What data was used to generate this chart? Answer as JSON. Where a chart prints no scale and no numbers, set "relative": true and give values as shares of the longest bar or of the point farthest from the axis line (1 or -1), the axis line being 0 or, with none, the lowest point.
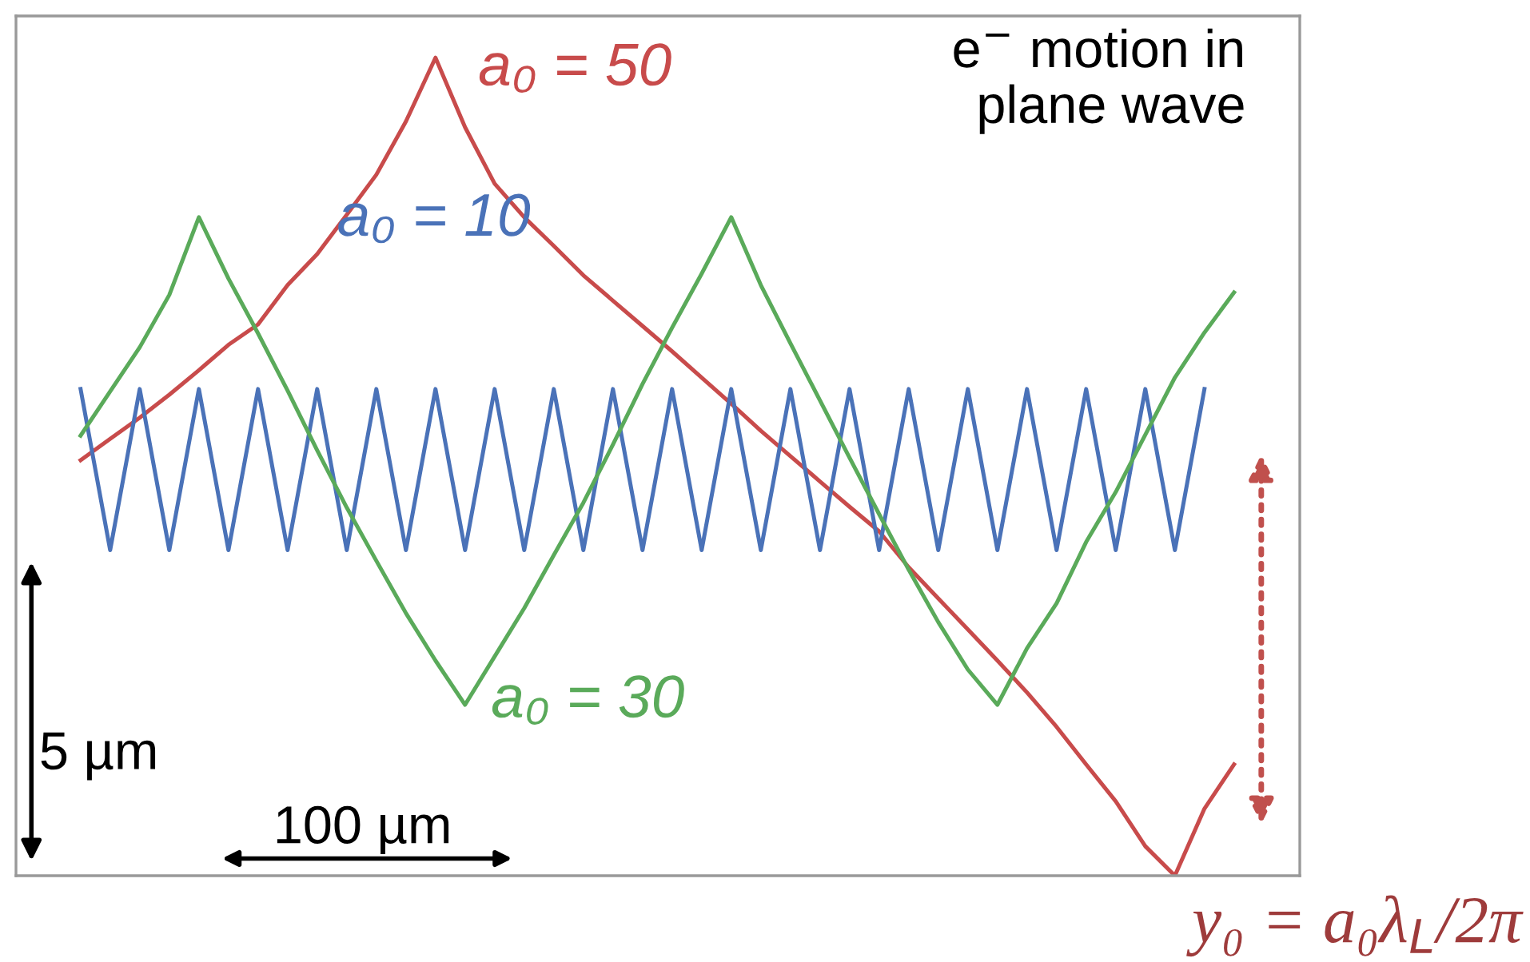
{
  "chart_data": {
    "type": "line",
    "relative": true,
    "categories": [
      null,
      null,
      null,
      null,
      null,
      null,
      null,
      null,
      null,
      null,
      null,
      null,
      null,
      null,
      null,
      null,
      null,
      null,
      null,
      null,
      null,
      null,
      null,
      null,
      null,
      null,
      null,
      null,
      null,
      null,
      null,
      null,
      null,
      null,
      null,
      null,
      null,
      null,
      null,
      null
    ],
    "annotations": [
      "e$^{−}$ motion in\nplane wave",
      "5 µm",
      "100 µm",
      "y₀ = a₀λ$_{L}$/2π"
    ],
    "series": [
      {
        "name": "a₀ = 50",
        "color": "#c84b4b",
        "values": [
          0.508,
          0.534,
          0.56,
          0.588,
          0.618,
          0.649,
          0.674,
          0.722,
          0.76,
          0.808,
          0.857,
          0.922,
          1,
          0.915,
          0.846,
          0.805,
          0.77,
          0.734,
          0.703,
          0.672,
          0.641,
          0.609,
          0.577,
          0.544,
          0.513,
          0.482,
          0.451,
          0.421,
          0.377,
          0.339,
          0.301,
          0.263,
          0.224,
          0.182,
          0.136,
          0.091,
          0.036,
          0,
          0.082,
          0.136
        ]
      },
      {
        "name": "a₀ = 10",
        "color": "#4a72b8",
        "values": [
          0.595,
          0.398,
          0.595,
          0.398,
          0.595,
          0.398,
          0.595,
          0.398,
          0.595,
          0.398,
          0.595,
          0.398,
          0.595,
          0.398,
          0.595,
          0.398,
          0.595,
          0.398,
          0.595,
          0.398,
          0.595,
          0.398,
          0.595,
          0.398,
          0.595,
          0.398,
          0.595,
          0.398,
          0.595,
          0.398,
          0.595,
          0.398,
          0.595,
          0.398,
          0.595,
          0.398,
          0.595,
          0.398,
          0.595,
          null
        ]
      },
      {
        "name": "a₀ = 30",
        "color": "#5aaa5a",
        "values": [
          0.538,
          0.592,
          0.646,
          0.71,
          0.805,
          0.73,
          0.663,
          0.593,
          0.52,
          0.45,
          0.385,
          0.321,
          0.263,
          0.209,
          0.268,
          0.327,
          0.392,
          0.456,
          0.527,
          0.601,
          0.67,
          0.736,
          0.805,
          0.722,
          0.651,
          0.581,
          0.511,
          0.442,
          0.374,
          0.31,
          0.252,
          0.209,
          0.278,
          0.333,
          0.408,
          0.469,
          0.539,
          0.609,
          0.664,
          0.713
        ]
      }
    ]
  }
}
